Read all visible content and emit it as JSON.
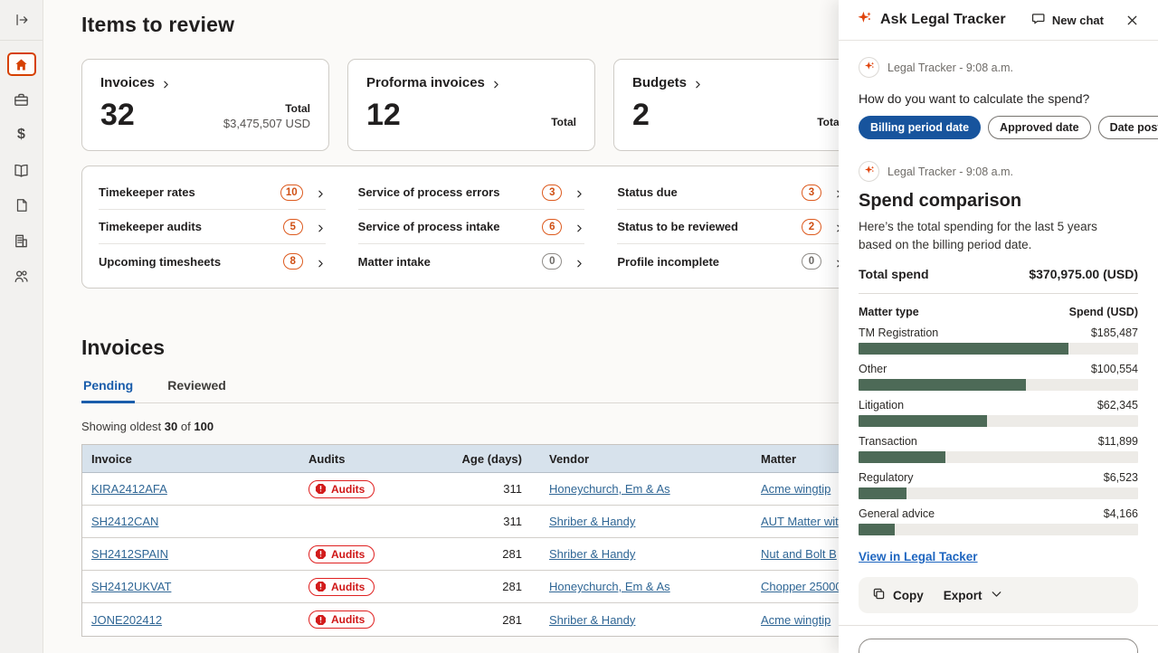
{
  "sidebar": {
    "icons": [
      {
        "name": "collapse-sidebar-icon"
      },
      {
        "name": "home-icon",
        "active": true
      },
      {
        "name": "briefcase-icon"
      },
      {
        "name": "dollar-icon"
      },
      {
        "name": "book-icon"
      },
      {
        "name": "document-icon"
      },
      {
        "name": "company-icon"
      },
      {
        "name": "people-icon"
      }
    ]
  },
  "main": {
    "title": "Items to review",
    "cards": [
      {
        "label": "Invoices",
        "count": "32",
        "total_label": "Total",
        "total_value": "$3,475,507 USD"
      },
      {
        "label": "Proforma invoices",
        "count": "12",
        "total_label": "Total",
        "total_value": ""
      },
      {
        "label": "Budgets",
        "count": "2",
        "total_label": "Total",
        "total_value": ""
      }
    ],
    "review_items": [
      {
        "label": "Timekeeper rates",
        "count": "10"
      },
      {
        "label": "Timekeeper audits",
        "count": "5"
      },
      {
        "label": "Upcoming timesheets",
        "count": "8"
      },
      {
        "label": "Service of process errors",
        "count": "3"
      },
      {
        "label": "Service of process intake",
        "count": "6"
      },
      {
        "label": "Matter intake",
        "count": "0"
      },
      {
        "label": "Status due",
        "count": "3"
      },
      {
        "label": "Status to be reviewed",
        "count": "2"
      },
      {
        "label": "Profile incomplete",
        "count": "0"
      }
    ],
    "invoices_section": {
      "title": "Invoices",
      "tabs": [
        {
          "label": "Pending",
          "active": true
        },
        {
          "label": "Reviewed",
          "active": false
        }
      ],
      "showing": {
        "prefix": "Showing oldest",
        "count": "30",
        "middle": "of",
        "total": "100"
      },
      "columns": [
        "Invoice",
        "Audits",
        "Age (days)",
        "Vendor",
        "Matter"
      ],
      "audits_badge_label": "Audits",
      "rows": [
        {
          "invoice": "KIRA2412AFA",
          "has_audits": true,
          "age": "311",
          "vendor": "Honeychurch, Em & As",
          "matter": "Acme wingtip"
        },
        {
          "invoice": "SH2412CAN",
          "has_audits": false,
          "age": "311",
          "vendor": "Shriber & Handy",
          "matter": "AUT Matter wit"
        },
        {
          "invoice": "SH2412SPAIN",
          "has_audits": true,
          "age": "281",
          "vendor": "Shriber & Handy",
          "matter": "Nut and Bolt B"
        },
        {
          "invoice": "SH2412UKVAT",
          "has_audits": true,
          "age": "281",
          "vendor": "Honeychurch, Em & As",
          "matter": "Chopper 25000"
        },
        {
          "invoice": "JONE202412",
          "has_audits": true,
          "age": "281",
          "vendor": "Shriber & Handy",
          "matter": "Acme wingtip"
        }
      ]
    }
  },
  "chat": {
    "title": "Ask Legal Tracker",
    "new_chat_label": "New chat",
    "message1": {
      "sender_line": "Legal Tracker - 9:08 a.m.",
      "question": "How do you want to calculate the spend?",
      "options": [
        "Billing period date",
        "Approved date",
        "Date posted"
      ],
      "selected_option": "Billing period date"
    },
    "message2": {
      "sender_line": "Legal Tracker - 9:08 a.m.",
      "heading": "Spend comparison",
      "body": "Here’s the total spending for the last 5 years based on the billing period date.",
      "total_label": "Total spend",
      "total_value": "$370,975.00 (USD)",
      "link_label": "View in Legal Tacker",
      "copy_label": "Copy",
      "export_label": "Export"
    }
  },
  "chart_data": {
    "type": "bar",
    "orientation": "horizontal",
    "title": "Spend comparison",
    "xlabel": "Matter type",
    "ylabel": "Spend (USD)",
    "categories": [
      "TM Registration",
      "Other",
      "Litigation",
      "Transaction",
      "Regulatory",
      "General advice"
    ],
    "values": [
      185487,
      100554,
      62345,
      11899,
      6523,
      4166
    ],
    "value_labels": [
      "$185,487",
      "$100,554",
      "$62,345",
      "$11,899",
      "$6,523",
      "$4,166"
    ],
    "total": 370975,
    "bar_pcts": [
      75,
      60,
      46,
      31,
      17,
      13
    ],
    "bar_color": "#4d6a57",
    "track_color": "#edebe7",
    "legend": false,
    "grid": false
  }
}
